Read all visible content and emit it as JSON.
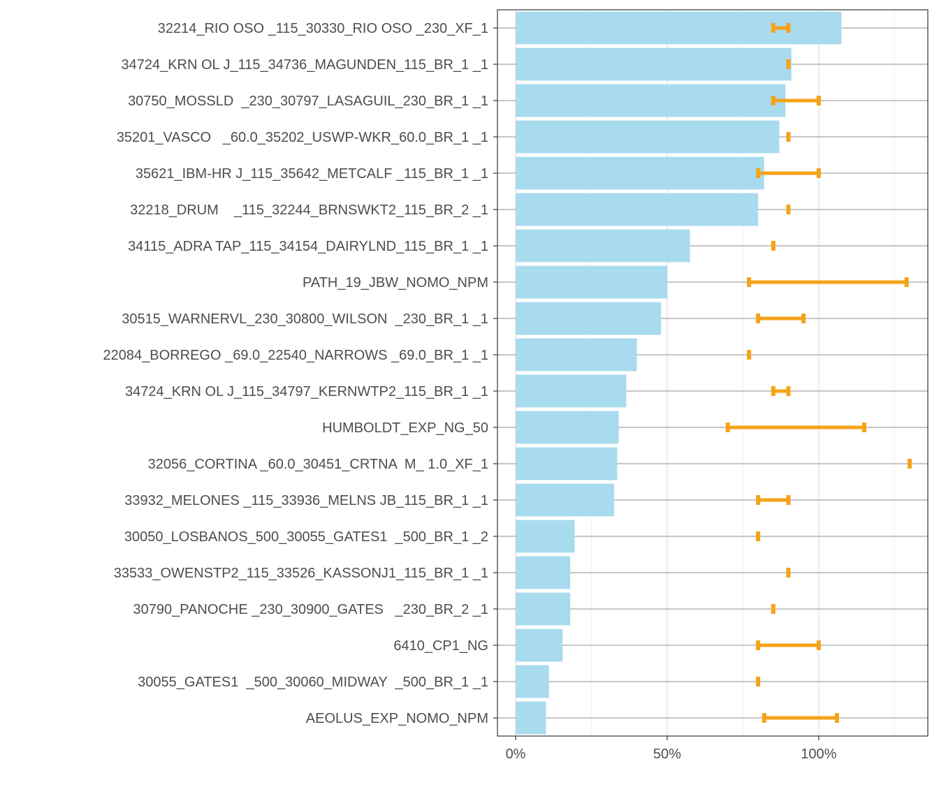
{
  "chart_data": {
    "type": "bar",
    "orientation": "horizontal",
    "title": "",
    "xlabel": "",
    "ylabel": "",
    "xlim": [
      -0.06,
      1.36
    ],
    "x_ticks": [
      0,
      0.5,
      1.0
    ],
    "x_tick_labels": [
      "0%",
      "50%",
      "100%"
    ],
    "grid": true,
    "legend": "none",
    "colors": {
      "bar": "#a8dbee",
      "range": "#f5a31a",
      "axis": "#333333",
      "row_line": "#8c8c8c",
      "grid": "#ebebeb"
    },
    "categories": [
      "32214_RIO OSO _115_30330_RIO OSO _230_XF_1",
      "34724_KRN OL J_115_34736_MAGUNDEN_115_BR_1 _1",
      "30750_MOSSLD  _230_30797_LASAGUIL_230_BR_1 _1",
      "35201_VASCO   _60.0_35202_USWP-WKR_60.0_BR_1 _1",
      "35621_IBM-HR J_115_35642_METCALF _115_BR_1 _1",
      "32218_DRUM    _115_32244_BRNSWKT2_115_BR_2 _1",
      "34115_ADRA TAP_115_34154_DAIRYLND_115_BR_1 _1",
      "PATH_19_JBW_NOMO_NPM",
      "30515_WARNERVL_230_30800_WILSON  _230_BR_1 _1",
      "22084_BORREGO _69.0_22540_NARROWS _69.0_BR_1 _1",
      "34724_KRN OL J_115_34797_KERNWTP2_115_BR_1 _1",
      "HUMBOLDT_EXP_NG_50",
      "32056_CORTINA _60.0_30451_CRTNA  M_ 1.0_XF_1",
      "33932_MELONES _115_33936_MELNS JB_115_BR_1 _1",
      "30050_LOSBANOS_500_30055_GATES1  _500_BR_1 _2",
      "33533_OWENSTP2_115_33526_KASSONJ1_115_BR_1 _1",
      "30790_PANOCHE _230_30900_GATES   _230_BR_2 _1",
      "6410_CP1_NG",
      "30055_GATES1  _500_30060_MIDWAY  _500_BR_1 _1",
      "AEOLUS_EXP_NOMO_NPM"
    ],
    "values": [
      1.075,
      0.91,
      0.89,
      0.87,
      0.82,
      0.8,
      0.575,
      0.5,
      0.48,
      0.4,
      0.365,
      0.34,
      0.335,
      0.325,
      0.195,
      0.18,
      0.18,
      0.155,
      0.11,
      0.1
    ],
    "ranges": [
      [
        0.85,
        0.9
      ],
      [
        0.9,
        0.9
      ],
      [
        0.85,
        1.0
      ],
      [
        0.9,
        0.9
      ],
      [
        0.8,
        1.0
      ],
      [
        0.9,
        0.9
      ],
      [
        0.85,
        0.85
      ],
      [
        0.77,
        1.29
      ],
      [
        0.8,
        0.95
      ],
      [
        0.77,
        0.77
      ],
      [
        0.85,
        0.9
      ],
      [
        0.7,
        1.15
      ],
      [
        1.3,
        1.3
      ],
      [
        0.8,
        0.9
      ],
      [
        0.8,
        0.8
      ],
      [
        0.9,
        0.9
      ],
      [
        0.85,
        0.85
      ],
      [
        0.8,
        1.0
      ],
      [
        0.8,
        0.8
      ],
      [
        0.82,
        1.06
      ]
    ]
  }
}
